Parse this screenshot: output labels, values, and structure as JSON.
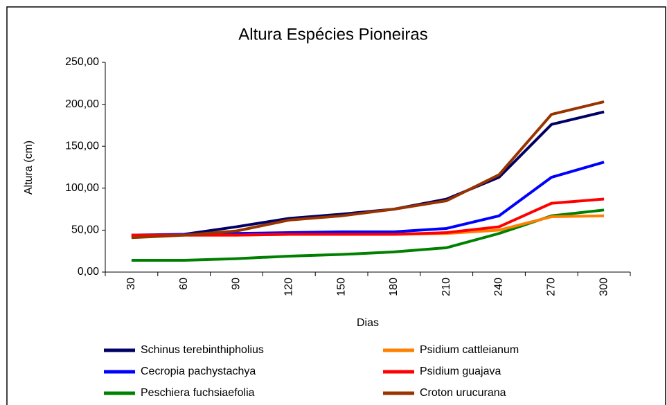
{
  "chart_data": {
    "type": "line",
    "title": "Altura Espécies Pioneiras",
    "x_label": "Dias",
    "y_label": "Altura (cm)",
    "categories": [
      "30",
      "60",
      "90",
      "120",
      "150",
      "180",
      "210",
      "240",
      "270",
      "300"
    ],
    "series": [
      {
        "name": "Schinus terebinthipholius",
        "color": "#000066",
        "values": [
          42,
          45,
          54,
          64,
          69,
          75,
          87,
          113,
          176,
          191
        ]
      },
      {
        "name": "Cecropia pachystachya",
        "color": "#0000ff",
        "values": [
          44,
          45,
          46,
          47,
          48,
          48,
          52,
          67,
          113,
          131
        ]
      },
      {
        "name": "Peschiera fuchsiaefolia",
        "color": "#008000",
        "values": [
          14,
          14,
          16,
          19,
          21,
          24,
          29,
          46,
          67,
          74
        ]
      },
      {
        "name": "Psidium cattleianum",
        "color": "#ff8000",
        "values": [
          43,
          44,
          44,
          45,
          45,
          45,
          46,
          50,
          66,
          67
        ]
      },
      {
        "name": "Psidium guajava",
        "color": "#ff0000",
        "values": [
          44,
          44,
          44,
          45,
          45,
          45,
          47,
          54,
          82,
          87
        ]
      },
      {
        "name": "Croton urucurana",
        "color": "#993300",
        "values": [
          41,
          44,
          49,
          62,
          67,
          75,
          85,
          116,
          188,
          203
        ]
      }
    ],
    "ylim": [
      0,
      250
    ],
    "yticks": [
      {
        "value": 0,
        "label": "0,00"
      },
      {
        "value": 50,
        "label": "50,00"
      },
      {
        "value": 100,
        "label": "100,00"
      },
      {
        "value": 150,
        "label": "150,00"
      },
      {
        "value": 200,
        "label": "200,00"
      },
      {
        "value": 250,
        "label": "250,00"
      }
    ]
  }
}
